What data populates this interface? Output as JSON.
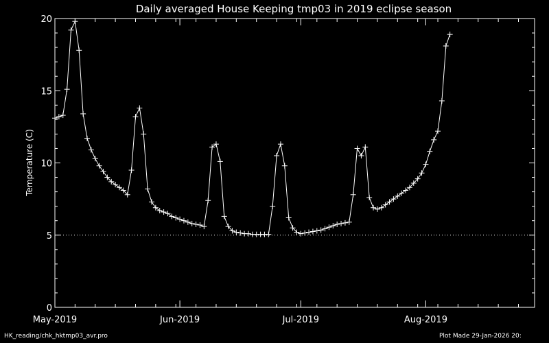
{
  "chart_data": {
    "type": "line",
    "title": "Daily averaged House Keeping tmp03 in 2019 eclipse season",
    "xlabel": "",
    "ylabel": "Temperature (C)",
    "xlim": [
      "2019-05-01",
      "2019-08-28"
    ],
    "ylim": [
      0,
      20
    ],
    "y_ticks": [
      0,
      5,
      10,
      15,
      20
    ],
    "x_ticks": [
      {
        "date": "2019-05-01",
        "label": "May-2019"
      },
      {
        "date": "2019-06-01",
        "label": "Jun-2019"
      },
      {
        "date": "2019-07-01",
        "label": "Jul-2019"
      },
      {
        "date": "2019-08-01",
        "label": "Aug-2019"
      }
    ],
    "reference_line": {
      "y": 5,
      "style": "dotted"
    },
    "grid": false,
    "marker": "plus",
    "colors": {
      "background": "#000000",
      "foreground": "#ffffff"
    },
    "series": [
      {
        "points": [
          [
            "2019-05-01",
            13.1
          ],
          [
            "2019-05-02",
            13.2
          ],
          [
            "2019-05-03",
            13.3
          ],
          [
            "2019-05-04",
            15.1
          ],
          [
            "2019-05-05",
            19.2
          ],
          [
            "2019-05-06",
            19.8
          ],
          [
            "2019-05-07",
            17.8
          ],
          [
            "2019-05-08",
            13.4
          ],
          [
            "2019-05-09",
            11.7
          ],
          [
            "2019-05-10",
            10.9
          ],
          [
            "2019-05-11",
            10.3
          ],
          [
            "2019-05-12",
            9.8
          ],
          [
            "2019-05-13",
            9.4
          ],
          [
            "2019-05-14",
            9.0
          ],
          [
            "2019-05-15",
            8.7
          ],
          [
            "2019-05-16",
            8.5
          ],
          [
            "2019-05-17",
            8.3
          ],
          [
            "2019-05-18",
            8.1
          ],
          [
            "2019-05-19",
            7.8
          ],
          [
            "2019-05-20",
            9.5
          ],
          [
            "2019-05-21",
            13.2
          ],
          [
            "2019-05-22",
            13.8
          ],
          [
            "2019-05-23",
            12.0
          ],
          [
            "2019-05-24",
            8.2
          ],
          [
            "2019-05-25",
            7.3
          ],
          [
            "2019-05-26",
            6.9
          ],
          [
            "2019-05-27",
            6.7
          ],
          [
            "2019-05-28",
            6.6
          ],
          [
            "2019-05-29",
            6.5
          ],
          [
            "2019-05-30",
            6.3
          ],
          [
            "2019-05-31",
            6.2
          ],
          [
            "2019-06-01",
            6.1
          ],
          [
            "2019-06-02",
            6.0
          ],
          [
            "2019-06-03",
            5.9
          ],
          [
            "2019-06-04",
            5.8
          ],
          [
            "2019-06-05",
            5.75
          ],
          [
            "2019-06-06",
            5.7
          ],
          [
            "2019-06-07",
            5.6
          ],
          [
            "2019-06-08",
            7.4
          ],
          [
            "2019-06-09",
            11.1
          ],
          [
            "2019-06-10",
            11.3
          ],
          [
            "2019-06-11",
            10.1
          ],
          [
            "2019-06-12",
            6.3
          ],
          [
            "2019-06-13",
            5.6
          ],
          [
            "2019-06-14",
            5.3
          ],
          [
            "2019-06-15",
            5.2
          ],
          [
            "2019-06-16",
            5.15
          ],
          [
            "2019-06-17",
            5.1
          ],
          [
            "2019-06-18",
            5.1
          ],
          [
            "2019-06-19",
            5.05
          ],
          [
            "2019-06-20",
            5.05
          ],
          [
            "2019-06-21",
            5.05
          ],
          [
            "2019-06-22",
            5.05
          ],
          [
            "2019-06-23",
            5.05
          ],
          [
            "2019-06-24",
            7.0
          ],
          [
            "2019-06-25",
            10.5
          ],
          [
            "2019-06-26",
            11.3
          ],
          [
            "2019-06-27",
            9.8
          ],
          [
            "2019-06-28",
            6.2
          ],
          [
            "2019-06-29",
            5.5
          ],
          [
            "2019-06-30",
            5.2
          ],
          [
            "2019-07-01",
            5.1
          ],
          [
            "2019-07-02",
            5.15
          ],
          [
            "2019-07-03",
            5.2
          ],
          [
            "2019-07-04",
            5.25
          ],
          [
            "2019-07-05",
            5.3
          ],
          [
            "2019-07-06",
            5.35
          ],
          [
            "2019-07-07",
            5.45
          ],
          [
            "2019-07-08",
            5.55
          ],
          [
            "2019-07-09",
            5.65
          ],
          [
            "2019-07-10",
            5.75
          ],
          [
            "2019-07-11",
            5.8
          ],
          [
            "2019-07-12",
            5.85
          ],
          [
            "2019-07-13",
            5.9
          ],
          [
            "2019-07-14",
            7.8
          ],
          [
            "2019-07-15",
            11.0
          ],
          [
            "2019-07-16",
            10.5
          ],
          [
            "2019-07-17",
            11.1
          ],
          [
            "2019-07-18",
            7.6
          ],
          [
            "2019-07-19",
            6.9
          ],
          [
            "2019-07-20",
            6.8
          ],
          [
            "2019-07-21",
            6.9
          ],
          [
            "2019-07-22",
            7.1
          ],
          [
            "2019-07-23",
            7.3
          ],
          [
            "2019-07-24",
            7.5
          ],
          [
            "2019-07-25",
            7.7
          ],
          [
            "2019-07-26",
            7.9
          ],
          [
            "2019-07-27",
            8.1
          ],
          [
            "2019-07-28",
            8.3
          ],
          [
            "2019-07-29",
            8.6
          ],
          [
            "2019-07-30",
            8.9
          ],
          [
            "2019-07-31",
            9.3
          ],
          [
            "2019-08-01",
            9.9
          ],
          [
            "2019-08-02",
            10.8
          ],
          [
            "2019-08-03",
            11.6
          ],
          [
            "2019-08-04",
            12.2
          ],
          [
            "2019-08-05",
            14.3
          ],
          [
            "2019-08-06",
            18.1
          ],
          [
            "2019-08-07",
            18.9
          ]
        ]
      }
    ]
  },
  "footer": {
    "left": "HK_reading/chk_hktmp03_avr.pro",
    "right": "Plot Made 29-Jan-2026 20:"
  }
}
